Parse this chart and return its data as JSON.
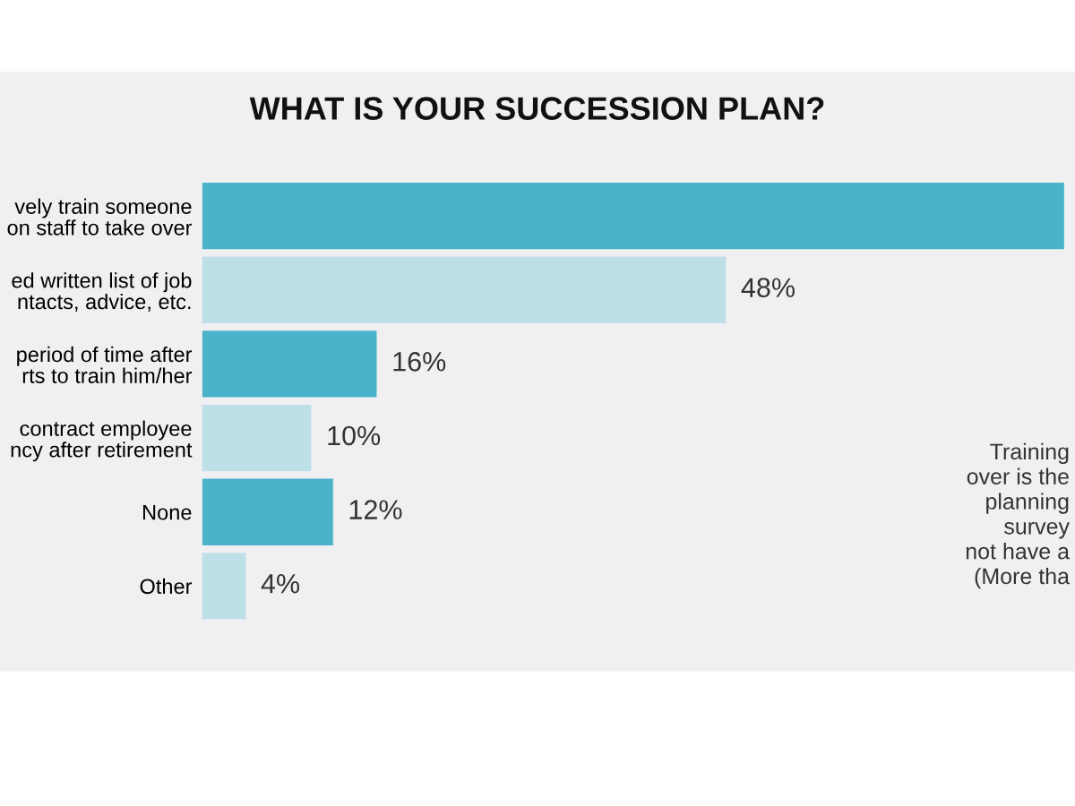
{
  "chart_data": {
    "type": "bar",
    "orientation": "horizontal",
    "title": "WHAT IS YOUR SUCCESSION PLAN?",
    "categories": [
      "vely train someone\non staff to take over",
      "ed written list of job\nntacts, advice, etc.",
      "period of time after\nrts to train him/her",
      "contract employee\nncy after retirement",
      "None",
      "Other"
    ],
    "values": [
      79,
      48,
      16,
      10,
      12,
      4
    ],
    "value_labels": [
      null,
      "48%",
      "16%",
      "10%",
      "12%",
      "4%"
    ],
    "colors": [
      "#4ab3c9",
      "#bde0e8",
      "#4ab3c9",
      "#bde0e8",
      "#4ab3c9",
      "#bde0e8"
    ],
    "xlim": [
      0,
      80
    ],
    "annotations": [
      "Training\nover is the\nplanning\nsurvey\nnot have a\n(More tha"
    ]
  }
}
